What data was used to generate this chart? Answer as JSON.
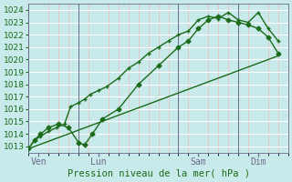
{
  "xlabel": "Pression niveau de la mer( hPa )",
  "background_color": "#c8eaea",
  "grid_major_color": "#ffffff",
  "grid_minor_x_color": "#f0b8b8",
  "grid_minor_y_color": "#ffffff",
  "line_color": "#1a6b1a",
  "ylim": [
    1012.5,
    1024.5
  ],
  "xlim": [
    0,
    13
  ],
  "yticks": [
    1013,
    1014,
    1015,
    1016,
    1017,
    1018,
    1019,
    1020,
    1021,
    1022,
    1023,
    1024
  ],
  "xtick_labels": [
    "Ven",
    "Lun",
    "Sam",
    "Dim"
  ],
  "xtick_positions": [
    0.5,
    3.5,
    8.5,
    11.5
  ],
  "vline_positions": [
    0,
    2.5,
    7.5,
    10.5,
    13
  ],
  "vline_color": "#6a6a8a",
  "line1": {
    "x": [
      0,
      0.3,
      0.6,
      1.0,
      1.4,
      1.8,
      2.1,
      2.5,
      2.8,
      3.1,
      3.5,
      3.9,
      4.5,
      5.0,
      5.5,
      6.0,
      6.5,
      7.0,
      7.5,
      8.0,
      8.5,
      9.0,
      9.5,
      10.0,
      10.5,
      11.0,
      11.5,
      12.0,
      12.5
    ],
    "y": [
      1012.8,
      1013.5,
      1013.8,
      1014.2,
      1014.5,
      1014.8,
      1016.2,
      1016.5,
      1016.8,
      1017.2,
      1017.5,
      1017.8,
      1018.5,
      1019.3,
      1019.8,
      1020.5,
      1021.0,
      1021.5,
      1022.0,
      1022.3,
      1023.2,
      1023.5,
      1023.3,
      1023.8,
      1023.2,
      1023.0,
      1023.8,
      1022.5,
      1021.5
    ]
  },
  "line2": {
    "x": [
      0,
      0.3,
      0.6,
      1.0,
      1.5,
      2.0,
      2.5,
      2.8,
      3.2,
      3.7,
      4.5,
      5.5,
      6.5,
      7.5,
      8.0,
      8.5,
      9.0,
      9.5,
      10.0,
      10.5,
      11.0,
      11.5,
      12.0,
      12.5
    ],
    "y": [
      1012.8,
      1013.5,
      1014.0,
      1014.5,
      1014.8,
      1014.5,
      1013.3,
      1013.1,
      1014.0,
      1015.2,
      1016.0,
      1018.0,
      1019.5,
      1021.0,
      1021.5,
      1022.5,
      1023.2,
      1023.5,
      1023.2,
      1023.0,
      1022.8,
      1022.5,
      1021.8,
      1020.5
    ]
  },
  "line3": {
    "x": [
      0,
      12.5
    ],
    "y": [
      1012.8,
      1020.3
    ]
  }
}
